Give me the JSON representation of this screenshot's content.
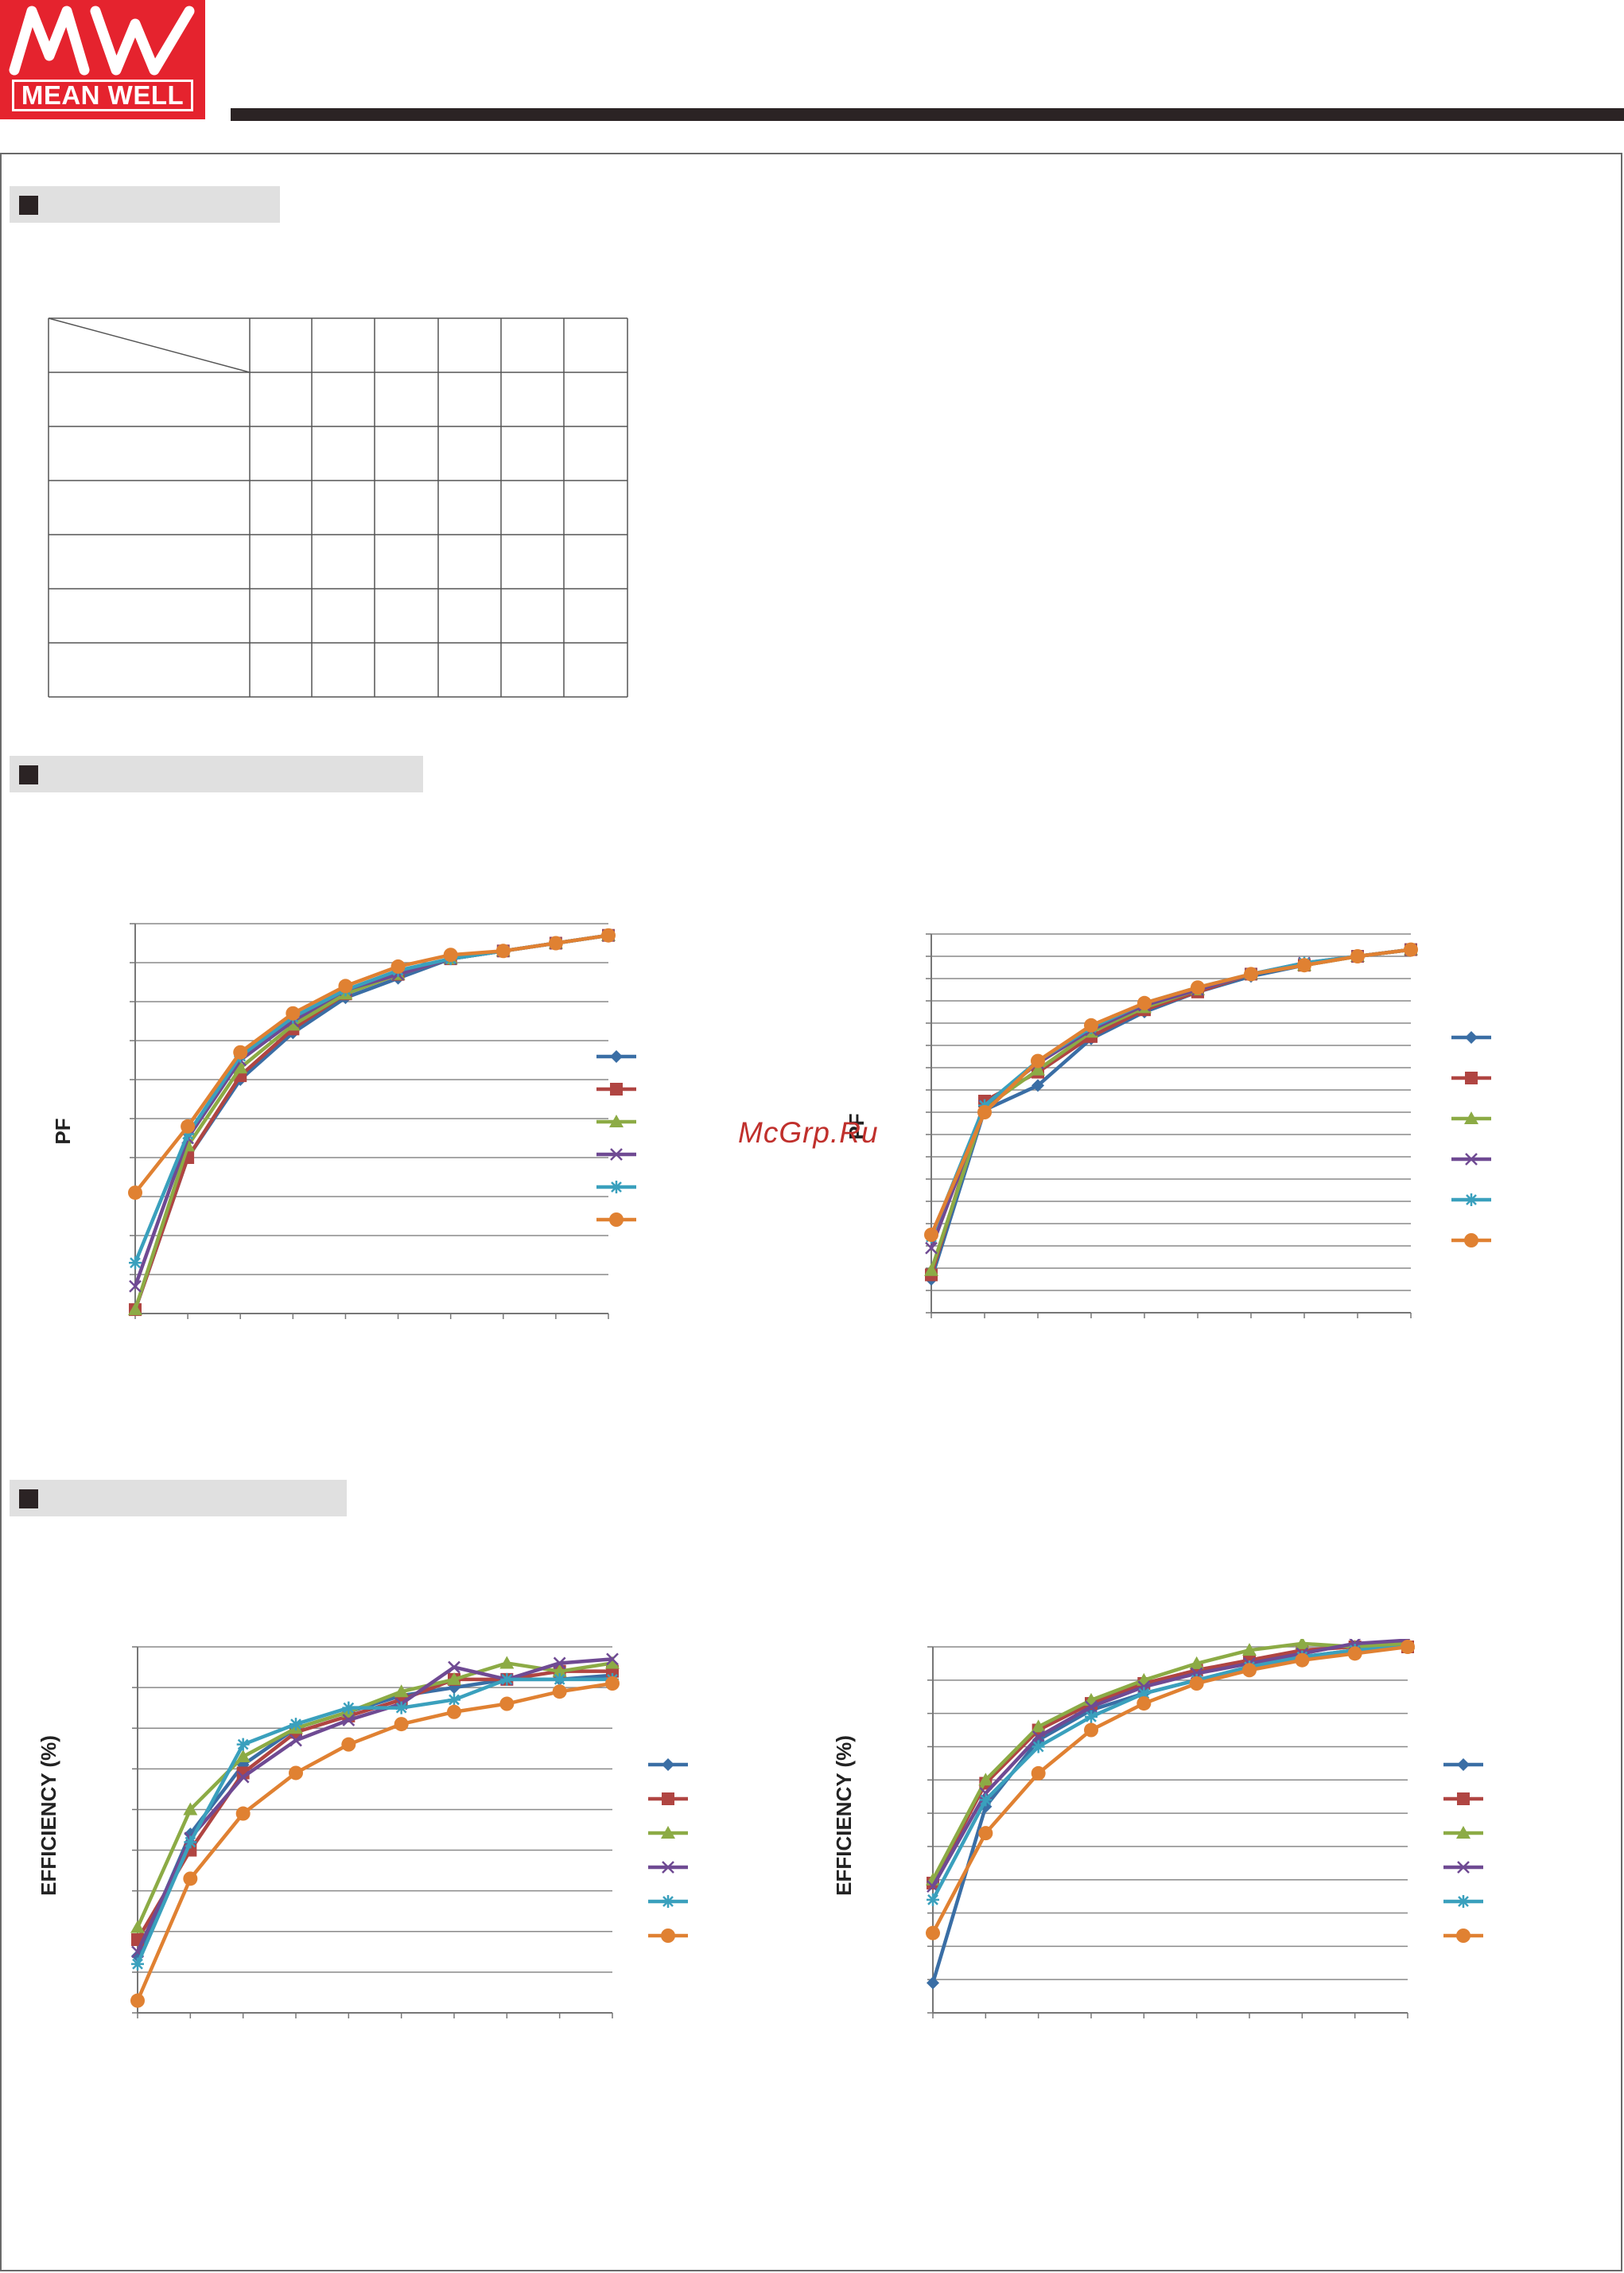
{
  "brand": {
    "name": "MEAN WELL",
    "colors": {
      "logo_red": "#e5232e",
      "dark": "#2b2324",
      "section_bg": "#e0e0e0"
    }
  },
  "watermark": "McGrp.Ru",
  "sections": [
    {
      "id": "table-section",
      "icon": "square-bullet-icon"
    },
    {
      "id": "pf-section",
      "icon": "square-bullet-icon"
    },
    {
      "id": "efficiency-section",
      "icon": "square-bullet-icon"
    }
  ],
  "table": {
    "rows": 7,
    "cols": 7,
    "has_diagonal_header": true
  },
  "chart_data": [
    {
      "type": "line",
      "ylabel": "PF",
      "series": [
        {
          "color": "#3a6ea5",
          "marker": "diamond",
          "values": [
            0.1,
            4.0,
            6.0,
            7.2,
            8.1,
            8.6,
            9.1,
            9.3,
            9.5,
            9.7
          ]
        },
        {
          "color": "#b04542",
          "marker": "square",
          "values": [
            0.1,
            4.0,
            6.1,
            7.3,
            8.2,
            8.7,
            9.1,
            9.3,
            9.5,
            9.7
          ]
        },
        {
          "color": "#8cab45",
          "marker": "triangle",
          "values": [
            0.1,
            4.3,
            6.3,
            7.4,
            8.2,
            8.7,
            9.1,
            9.3,
            9.5,
            9.7
          ]
        },
        {
          "color": "#6f4a93",
          "marker": "x",
          "values": [
            0.7,
            4.5,
            6.5,
            7.5,
            8.3,
            8.7,
            9.1,
            9.3,
            9.5,
            9.7
          ]
        },
        {
          "color": "#3aa0bd",
          "marker": "star",
          "values": [
            1.3,
            4.6,
            6.6,
            7.6,
            8.3,
            8.8,
            9.1,
            9.3,
            9.5,
            9.7
          ]
        },
        {
          "color": "#e08132",
          "marker": "circle",
          "values": [
            3.1,
            4.8,
            6.7,
            7.7,
            8.4,
            8.9,
            9.2,
            9.3,
            9.5,
            9.7
          ]
        }
      ]
    },
    {
      "type": "line",
      "ylabel": "PF",
      "series": [
        {
          "color": "#3a6ea5",
          "marker": "diamond",
          "values": [
            1.5,
            9.1,
            10.2,
            12.3,
            13.5,
            14.4,
            15.1,
            15.6,
            16.0,
            16.3
          ]
        },
        {
          "color": "#b04542",
          "marker": "square",
          "values": [
            1.7,
            9.5,
            10.8,
            12.4,
            13.6,
            14.4,
            15.2,
            15.6,
            16.0,
            16.3
          ]
        },
        {
          "color": "#8cab45",
          "marker": "triangle",
          "values": [
            1.9,
            9.2,
            10.9,
            12.6,
            13.7,
            14.5,
            15.2,
            15.6,
            16.0,
            16.3
          ]
        },
        {
          "color": "#6f4a93",
          "marker": "x",
          "values": [
            2.9,
            9.3,
            11.2,
            12.7,
            13.8,
            14.5,
            15.2,
            15.7,
            16.0,
            16.3
          ]
        },
        {
          "color": "#3aa0bd",
          "marker": "star",
          "values": [
            3.4,
            9.3,
            11.3,
            12.8,
            13.9,
            14.6,
            15.2,
            15.7,
            16.0,
            16.3
          ]
        },
        {
          "color": "#e08132",
          "marker": "circle",
          "values": [
            3.5,
            9.0,
            11.3,
            12.9,
            13.9,
            14.6,
            15.2,
            15.6,
            16.0,
            16.3
          ]
        }
      ]
    },
    {
      "type": "line",
      "ylabel": "EFFICIENCY (%)",
      "series": [
        {
          "color": "#3a6ea5",
          "marker": "diamond",
          "values": [
            1.4,
            4.4,
            6.1,
            7.0,
            7.4,
            7.8,
            8.0,
            8.2,
            8.2,
            8.3
          ]
        },
        {
          "color": "#b04542",
          "marker": "square",
          "values": [
            1.8,
            4.0,
            5.9,
            6.9,
            7.3,
            7.7,
            8.2,
            8.2,
            8.4,
            8.4
          ]
        },
        {
          "color": "#8cab45",
          "marker": "triangle",
          "values": [
            2.1,
            5.0,
            6.3,
            7.0,
            7.4,
            7.9,
            8.2,
            8.6,
            8.4,
            8.6
          ]
        },
        {
          "color": "#6f4a93",
          "marker": "x",
          "values": [
            1.5,
            4.3,
            5.8,
            6.7,
            7.2,
            7.6,
            8.5,
            8.2,
            8.6,
            8.7
          ]
        },
        {
          "color": "#3aa0bd",
          "marker": "star",
          "values": [
            1.2,
            4.2,
            6.6,
            7.1,
            7.5,
            7.5,
            7.7,
            8.2,
            8.2,
            8.2
          ]
        },
        {
          "color": "#e08132",
          "marker": "circle",
          "values": [
            0.3,
            3.3,
            4.9,
            5.9,
            6.6,
            7.1,
            7.4,
            7.6,
            7.9,
            8.1
          ]
        }
      ]
    },
    {
      "type": "line",
      "ylabel": "EFFICIENCY (%)",
      "series": [
        {
          "color": "#3a6ea5",
          "marker": "diamond",
          "values": [
            0.9,
            6.2,
            8.2,
            9.1,
            9.6,
            10.0,
            10.3,
            10.7,
            10.9,
            11.0
          ]
        },
        {
          "color": "#b04542",
          "marker": "square",
          "values": [
            3.9,
            6.9,
            8.5,
            9.3,
            9.9,
            10.3,
            10.6,
            10.9,
            11.0,
            11.0
          ]
        },
        {
          "color": "#8cab45",
          "marker": "triangle",
          "values": [
            4.0,
            7.0,
            8.6,
            9.4,
            10.0,
            10.5,
            10.9,
            11.1,
            11.0,
            11.1
          ]
        },
        {
          "color": "#6f4a93",
          "marker": "x",
          "values": [
            3.8,
            6.6,
            8.3,
            9.2,
            9.8,
            10.2,
            10.5,
            10.8,
            11.1,
            11.2
          ]
        },
        {
          "color": "#3aa0bd",
          "marker": "star",
          "values": [
            3.4,
            6.4,
            8.0,
            8.9,
            9.6,
            10.0,
            10.4,
            10.7,
            10.9,
            11.0
          ]
        },
        {
          "color": "#e08132",
          "marker": "circle",
          "values": [
            2.4,
            5.4,
            7.2,
            8.5,
            9.3,
            9.9,
            10.3,
            10.6,
            10.8,
            11.0
          ]
        }
      ]
    }
  ]
}
